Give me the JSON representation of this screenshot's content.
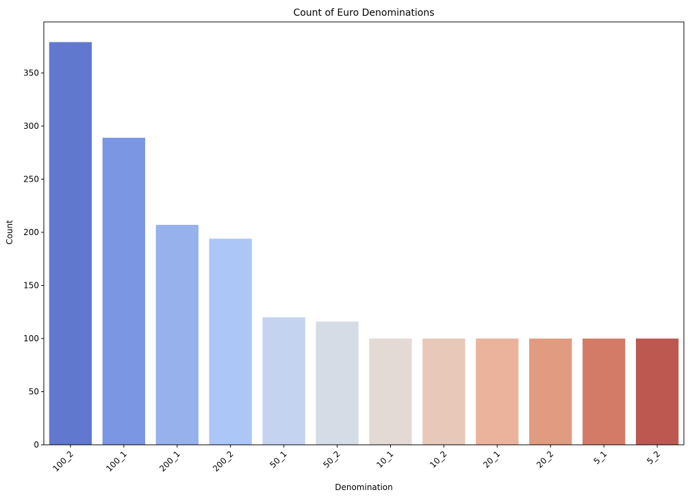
{
  "chart_data": {
    "type": "bar",
    "title": "Count of Euro Denominations",
    "xlabel": "Denomination",
    "ylabel": "Count",
    "categories": [
      "100_2",
      "100_1",
      "200_1",
      "200_2",
      "50_1",
      "50_2",
      "10_1",
      "10_2",
      "20_1",
      "20_2",
      "5_1",
      "5_2"
    ],
    "values": [
      379,
      289,
      207,
      194,
      120,
      116,
      100,
      100,
      100,
      100,
      100,
      100
    ],
    "colors": [
      "#6178cf",
      "#7b96e3",
      "#97b1ed",
      "#adc6f8",
      "#c4d4f0",
      "#d6dce5",
      "#e3dad5",
      "#e8c9b9",
      "#ebb39c",
      "#e19b80",
      "#d47b68",
      "#bd5851"
    ],
    "ylim": [
      0,
      398
    ],
    "yticks": [
      0,
      50,
      100,
      150,
      200,
      250,
      300,
      350
    ],
    "xtick_rotation": 45,
    "grid": false,
    "legend": "none"
  }
}
